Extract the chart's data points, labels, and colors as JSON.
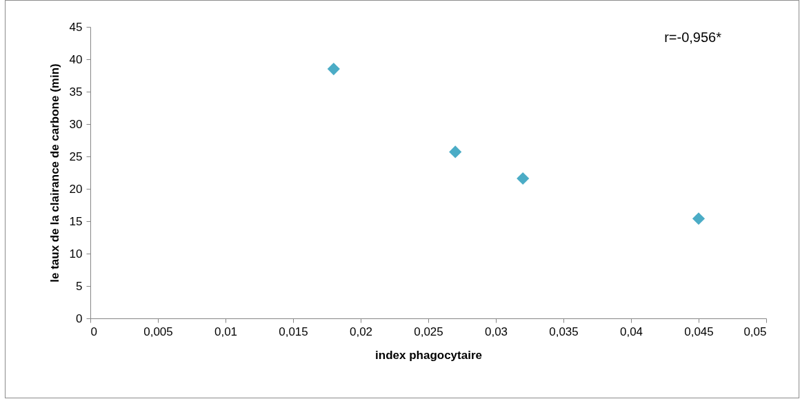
{
  "chart_data": {
    "type": "scatter",
    "xlabel": "index phagocytaire",
    "ylabel": "le taux de la clairance de carbone (min)",
    "x": [
      0.018,
      0.027,
      0.032,
      0.045
    ],
    "series": [
      {
        "color": "#4bacc6",
        "values": [
          38.5,
          25.7,
          21.6,
          15.4
        ]
      }
    ],
    "xlim": [
      0,
      0.05
    ],
    "xticks": [
      0,
      {
        "value": 0.005,
        "label": "0,005"
      },
      {
        "value": 0.01,
        "label": "0,01"
      },
      {
        "value": 0.015,
        "label": "0,015"
      },
      {
        "value": 0.02,
        "label": "0,02"
      },
      {
        "value": 0.025,
        "label": "0,025"
      },
      {
        "value": 0.03,
        "label": "0,03"
      },
      {
        "value": 0.035,
        "label": "0,035"
      },
      {
        "value": 0.04,
        "label": "0,04"
      },
      {
        "value": 0.045,
        "label": "0,045"
      },
      {
        "value": 0.05,
        "label": "0,05"
      }
    ],
    "ylim": [
      0,
      45
    ],
    "yticks": [
      0,
      5,
      10,
      15,
      20,
      25,
      30,
      35,
      40,
      45
    ],
    "marker": "diamond",
    "annotations": [
      "r=-0,956*"
    ]
  }
}
